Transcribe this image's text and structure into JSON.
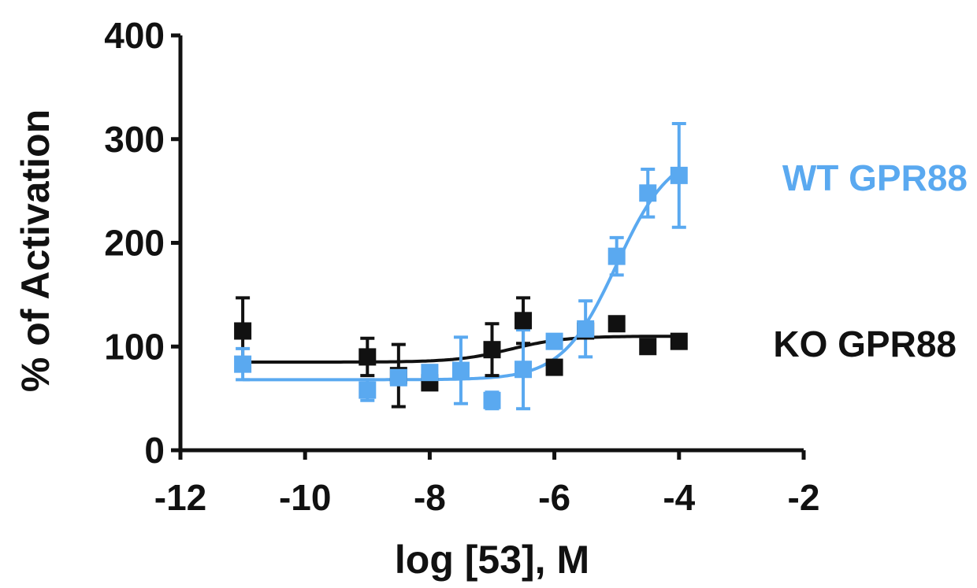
{
  "chart_data": {
    "type": "scatter",
    "title": "",
    "xlabel": "log [53], M",
    "ylabel": "% of Activation",
    "xlim": [
      -12,
      -2
    ],
    "ylim": [
      0,
      400
    ],
    "xticks": [
      -12,
      -10,
      -8,
      -6,
      -4,
      -2
    ],
    "yticks": [
      0,
      100,
      200,
      300,
      400
    ],
    "xtick_labels": [
      "-12",
      "-10",
      "-8",
      "-6",
      "-4",
      "-2"
    ],
    "ytick_labels": [
      "0",
      "100",
      "200",
      "300",
      "400"
    ],
    "grid": false,
    "legend": "direct-labels-right",
    "series": [
      {
        "name": "KO GPR88",
        "color": "#111111",
        "x": [
          -11,
          -9,
          -8.5,
          -8,
          -7,
          -6.5,
          -6,
          -5.5,
          -5,
          -4.5,
          -4
        ],
        "y": [
          115,
          90,
          72,
          65,
          97,
          125,
          80,
          115,
          122,
          100,
          105
        ],
        "err": [
          32,
          18,
          30,
          5,
          25,
          22,
          5,
          5,
          5,
          5,
          5
        ],
        "fit": {
          "bottom": 85,
          "top": 110,
          "logEC50": -6.7,
          "hill": 1.0
        }
      },
      {
        "name": "WT GPR88",
        "color": "#5aa9f0",
        "x": [
          -11,
          -9,
          -8.5,
          -8,
          -7.5,
          -7,
          -6.5,
          -6,
          -5.5,
          -5,
          -4.5,
          -4
        ],
        "y": [
          83,
          58,
          70,
          75,
          77,
          48,
          78,
          105,
          117,
          187,
          248,
          265
        ],
        "err": [
          15,
          10,
          5,
          5,
          32,
          8,
          38,
          5,
          27,
          18,
          23,
          50
        ],
        "fit": {
          "bottom": 68,
          "top": 290,
          "logEC50": -5.0,
          "hill": 1.0
        }
      }
    ]
  }
}
